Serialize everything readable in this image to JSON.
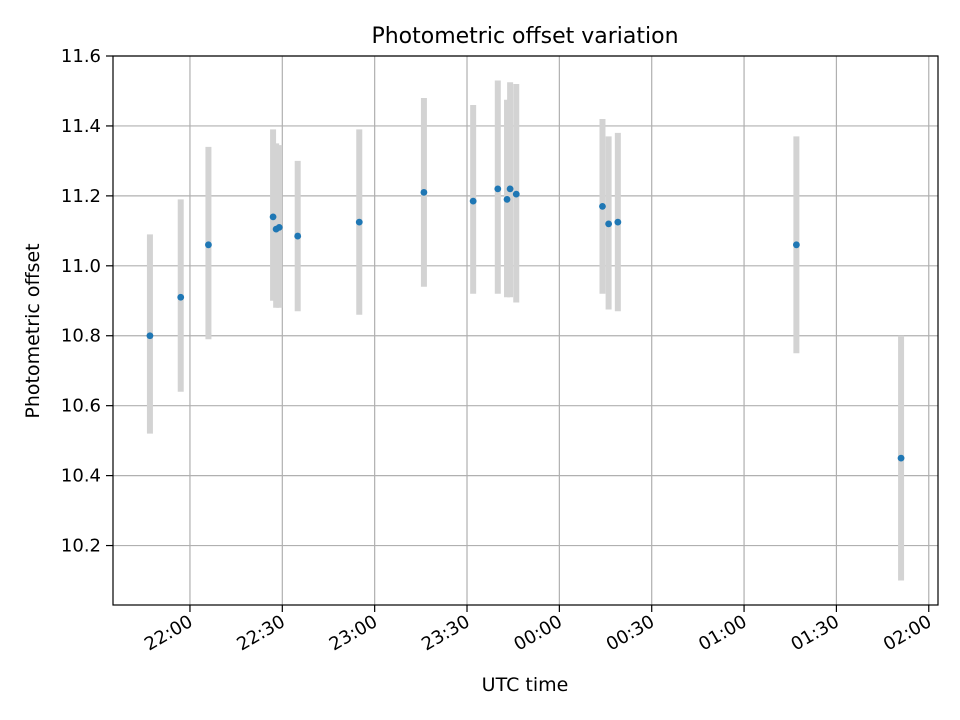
{
  "chart_data": {
    "type": "scatter",
    "title": "Photometric offset variation",
    "xlabel": "UTC time",
    "ylabel": "Photometric offset",
    "ylim": [
      10.03,
      11.6
    ],
    "xlim": [
      "21:35",
      "02:03"
    ],
    "grid": true,
    "x_ticks": [
      "22:00",
      "22:30",
      "23:00",
      "23:30",
      "00:00",
      "00:30",
      "01:00",
      "01:30",
      "02:00"
    ],
    "y_ticks": [
      "10.2",
      "10.4",
      "10.6",
      "10.8",
      "11.0",
      "11.2",
      "11.4",
      "11.6"
    ],
    "point_color": "#1f77b4",
    "errorbar_color": "#d3d3d3",
    "points": [
      {
        "time": "21:47",
        "value": 10.8,
        "low": 10.52,
        "high": 11.09
      },
      {
        "time": "21:57",
        "value": 10.91,
        "low": 10.64,
        "high": 11.19
      },
      {
        "time": "22:06",
        "value": 11.06,
        "low": 10.79,
        "high": 11.34
      },
      {
        "time": "22:27",
        "value": 11.14,
        "low": 10.9,
        "high": 11.39
      },
      {
        "time": "22:28",
        "value": 11.105,
        "low": 10.88,
        "high": 11.35
      },
      {
        "time": "22:29",
        "value": 11.11,
        "low": 10.88,
        "high": 11.345
      },
      {
        "time": "22:35",
        "value": 11.085,
        "low": 10.87,
        "high": 11.3
      },
      {
        "time": "22:55",
        "value": 11.125,
        "low": 10.86,
        "high": 11.39
      },
      {
        "time": "23:16",
        "value": 11.21,
        "low": 10.94,
        "high": 11.48
      },
      {
        "time": "23:32",
        "value": 11.185,
        "low": 10.92,
        "high": 11.46
      },
      {
        "time": "23:40",
        "value": 11.22,
        "low": 10.92,
        "high": 11.53
      },
      {
        "time": "23:43",
        "value": 11.19,
        "low": 10.91,
        "high": 11.475
      },
      {
        "time": "23:44",
        "value": 11.22,
        "low": 10.91,
        "high": 11.525
      },
      {
        "time": "23:46",
        "value": 11.205,
        "low": 10.895,
        "high": 11.52
      },
      {
        "time": "00:14",
        "value": 11.17,
        "low": 10.92,
        "high": 11.42
      },
      {
        "time": "00:16",
        "value": 11.12,
        "low": 10.875,
        "high": 11.37
      },
      {
        "time": "00:19",
        "value": 11.125,
        "low": 10.87,
        "high": 11.38
      },
      {
        "time": "01:17",
        "value": 11.06,
        "low": 10.75,
        "high": 11.37
      },
      {
        "time": "01:51",
        "value": 10.45,
        "low": 10.1,
        "high": 10.8
      }
    ]
  }
}
